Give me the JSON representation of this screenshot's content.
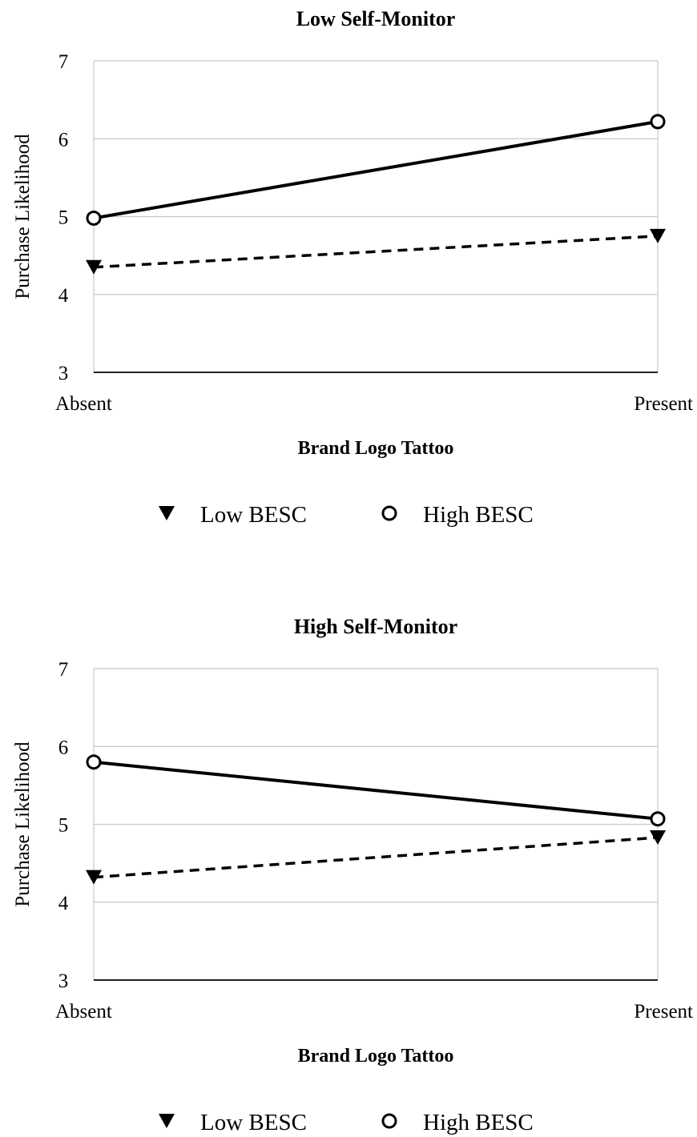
{
  "chart_data": [
    {
      "type": "line",
      "title": "Low Self-Monitor",
      "xlabel": "Brand Logo Tattoo",
      "ylabel": "Purchase Likelihood",
      "categories": [
        "Absent",
        "Present"
      ],
      "ylim": [
        3,
        7
      ],
      "yticks": [
        "3",
        "4",
        "5",
        "6",
        "7"
      ],
      "grid": true,
      "legend_position": "bottom",
      "series": [
        {
          "name": "Low BESC",
          "values": [
            4.35,
            4.75
          ],
          "style": "dashed",
          "marker": "down-triangle",
          "color": "#000000"
        },
        {
          "name": "High BESC",
          "values": [
            4.98,
            6.22
          ],
          "style": "solid",
          "marker": "open-circle",
          "color": "#000000"
        }
      ]
    },
    {
      "type": "line",
      "title": "High Self-Monitor",
      "xlabel": "Brand Logo Tattoo",
      "ylabel": "Purchase Likelihood",
      "categories": [
        "Absent",
        "Present"
      ],
      "ylim": [
        3,
        7
      ],
      "yticks": [
        "3",
        "4",
        "5",
        "6",
        "7"
      ],
      "grid": true,
      "legend_position": "bottom",
      "series": [
        {
          "name": "Low BESC",
          "values": [
            4.32,
            4.83
          ],
          "style": "dashed",
          "marker": "down-triangle",
          "color": "#000000"
        },
        {
          "name": "High BESC",
          "values": [
            5.8,
            5.07
          ],
          "style": "solid",
          "marker": "open-circle",
          "color": "#000000"
        }
      ]
    }
  ]
}
